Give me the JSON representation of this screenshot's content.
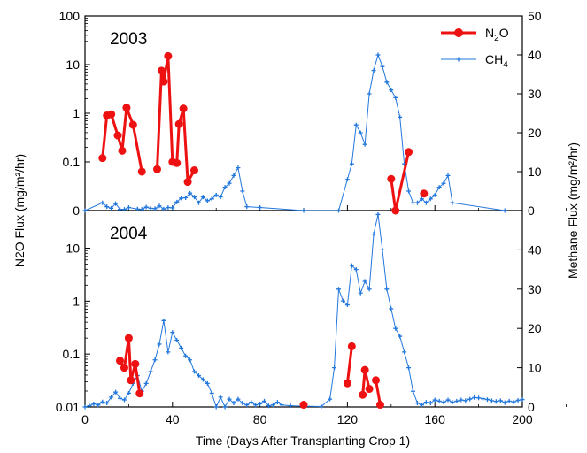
{
  "chart_data": {
    "type": "line",
    "xlabel": "Time (Days After Transplanting Crop 1)",
    "left_ylabel": "N2O Flux (mg/m²/hr)",
    "right_ylabel": "Methane Flux (mg/m²/hr)",
    "xlim": [
      0,
      200
    ],
    "x_ticks": [
      0,
      40,
      80,
      120,
      160,
      200
    ],
    "legend": {
      "placement": "top-right",
      "n2o": {
        "base": "N",
        "sub": "2",
        "tail": "O"
      },
      "ch4": {
        "base": "CH",
        "sub": "4",
        "tail": ""
      }
    },
    "colors": {
      "n2o": "#ee1111",
      "ch4": "#2277dd"
    },
    "panels": [
      {
        "label": "2003",
        "left_axis": {
          "scale": "log-with-zero",
          "ticks": [
            0,
            0.1,
            1,
            10,
            100
          ],
          "tick_labels": [
            "0",
            "0.1",
            "1",
            "10",
            "100"
          ]
        },
        "right_axis": {
          "ylim": [
            0,
            50
          ],
          "ticks": [
            0,
            10,
            20,
            30,
            40,
            50
          ],
          "tick_labels": [
            "0",
            "10",
            "20",
            "30",
            "40",
            "50"
          ]
        },
        "n2o_segments": [
          [
            [
              8,
              0.12
            ],
            [
              10,
              0.9
            ],
            [
              12,
              0.95
            ],
            [
              15,
              0.35
            ],
            [
              17,
              0.17
            ],
            [
              19,
              1.3
            ],
            [
              22,
              0.58
            ],
            [
              26,
              0.04
            ]
          ],
          [
            [
              33,
              0.05
            ],
            [
              35,
              7.5
            ],
            [
              36,
              4.5
            ],
            [
              38,
              15
            ],
            [
              40,
              0.1
            ],
            [
              42,
              0.09
            ],
            [
              43,
              0.6
            ],
            [
              45,
              1.25
            ],
            [
              47,
              0.015
            ],
            [
              50,
              0.045
            ]
          ],
          [
            [
              140,
              0.02
            ],
            [
              142,
              0
            ],
            [
              148,
              0.16
            ]
          ],
          [
            [
              155,
              0.005
            ]
          ]
        ],
        "ch4": [
          [
            0,
            0
          ],
          [
            8,
            2
          ],
          [
            10,
            1
          ],
          [
            12,
            0.6
          ],
          [
            14,
            1.8
          ],
          [
            16,
            0.3
          ],
          [
            18,
            0.3
          ],
          [
            20,
            0.8
          ],
          [
            24,
            0.4
          ],
          [
            26,
            0.3
          ],
          [
            28,
            0.9
          ],
          [
            30,
            0.6
          ],
          [
            32,
            0.5
          ],
          [
            34,
            1.2
          ],
          [
            36,
            0.4
          ],
          [
            38,
            0.8
          ],
          [
            40,
            0.7
          ],
          [
            42,
            2.2
          ],
          [
            44,
            3.2
          ],
          [
            46,
            3.3
          ],
          [
            48,
            4.5
          ],
          [
            50,
            3.5
          ],
          [
            52,
            2
          ],
          [
            54,
            3.5
          ],
          [
            56,
            2.5
          ],
          [
            58,
            3
          ],
          [
            60,
            4
          ],
          [
            62,
            3.5
          ],
          [
            64,
            6
          ],
          [
            66,
            7
          ],
          [
            68,
            9
          ],
          [
            70,
            11
          ],
          [
            72,
            5
          ],
          [
            74,
            1
          ],
          [
            80,
            0.8
          ],
          [
            100,
            0
          ],
          [
            116,
            0
          ],
          [
            120,
            8
          ],
          [
            122,
            12
          ],
          [
            124,
            22
          ],
          [
            126,
            20
          ],
          [
            128,
            17
          ],
          [
            130,
            30
          ],
          [
            132,
            36
          ],
          [
            134,
            40
          ],
          [
            136,
            37
          ],
          [
            138,
            33
          ],
          [
            140,
            31
          ],
          [
            142,
            29
          ],
          [
            144,
            24
          ],
          [
            146,
            12
          ],
          [
            148,
            5
          ],
          [
            150,
            2
          ],
          [
            152,
            2
          ],
          [
            154,
            3
          ],
          [
            156,
            2
          ],
          [
            158,
            3
          ],
          [
            160,
            4
          ],
          [
            162,
            6
          ],
          [
            164,
            7
          ],
          [
            166,
            9
          ],
          [
            168,
            2
          ],
          [
            192,
            0
          ]
        ]
      },
      {
        "label": "2004",
        "left_axis": {
          "scale": "log",
          "ticks": [
            0.01,
            0.1,
            1,
            10
          ],
          "tick_labels": [
            "0.01",
            "0.1",
            "1",
            "10"
          ]
        },
        "right_axis": {
          "ylim": [
            0,
            50
          ],
          "ticks": [
            0,
            10,
            20,
            30,
            40
          ],
          "tick_labels": [
            "0",
            "10",
            "20",
            "30",
            "40"
          ]
        },
        "n2o_segments": [
          [
            [
              16,
              0.075
            ],
            [
              18,
              0.055
            ],
            [
              20,
              0.2
            ],
            [
              21,
              0.032
            ],
            [
              23,
              0.065
            ],
            [
              25,
              0.018
            ]
          ],
          [
            [
              100,
              0.011
            ]
          ],
          [
            [
              120,
              0.028
            ],
            [
              122,
              0.14
            ]
          ],
          [
            [
              127,
              0.017
            ],
            [
              128,
              0.05
            ],
            [
              130,
              0.022
            ]
          ],
          [
            [
              133,
              0.032
            ],
            [
              135,
              0.011
            ]
          ]
        ],
        "ch4": [
          [
            0,
            0
          ],
          [
            2,
            0.3
          ],
          [
            4,
            0.8
          ],
          [
            6,
            0.5
          ],
          [
            8,
            1.3
          ],
          [
            10,
            1
          ],
          [
            12,
            2.5
          ],
          [
            14,
            3.8
          ],
          [
            16,
            2.2
          ],
          [
            18,
            1.8
          ],
          [
            20,
            3.5
          ],
          [
            22,
            6
          ],
          [
            24,
            8
          ],
          [
            26,
            4
          ],
          [
            28,
            6
          ],
          [
            30,
            9
          ],
          [
            32,
            12
          ],
          [
            34,
            16
          ],
          [
            36,
            22
          ],
          [
            38,
            14
          ],
          [
            40,
            19
          ],
          [
            42,
            17
          ],
          [
            44,
            15
          ],
          [
            46,
            13
          ],
          [
            48,
            12
          ],
          [
            50,
            9
          ],
          [
            52,
            8
          ],
          [
            54,
            7
          ],
          [
            56,
            6
          ],
          [
            58,
            3.5
          ],
          [
            60,
            0
          ],
          [
            62,
            2.5
          ],
          [
            64,
            0
          ],
          [
            66,
            2
          ],
          [
            68,
            1
          ],
          [
            70,
            2
          ],
          [
            72,
            1
          ],
          [
            74,
            0.5
          ],
          [
            76,
            1.2
          ],
          [
            78,
            0.5
          ],
          [
            80,
            0.8
          ],
          [
            82,
            1.5
          ],
          [
            84,
            0.3
          ],
          [
            86,
            0.5
          ],
          [
            88,
            1.2
          ],
          [
            90,
            0.5
          ],
          [
            94,
            0.3
          ],
          [
            100,
            0.2
          ],
          [
            108,
            0.1
          ],
          [
            112,
            2
          ],
          [
            114,
            10
          ],
          [
            116,
            30
          ],
          [
            118,
            27
          ],
          [
            120,
            26
          ],
          [
            122,
            36
          ],
          [
            124,
            35
          ],
          [
            126,
            29
          ],
          [
            128,
            32
          ],
          [
            130,
            30
          ],
          [
            132,
            44
          ],
          [
            134,
            49
          ],
          [
            136,
            40
          ],
          [
            138,
            30
          ],
          [
            140,
            25
          ],
          [
            142,
            20
          ],
          [
            144,
            18
          ],
          [
            146,
            14
          ],
          [
            148,
            10
          ],
          [
            150,
            4
          ],
          [
            152,
            1
          ],
          [
            154,
            0.5
          ],
          [
            156,
            1.2
          ],
          [
            158,
            1
          ],
          [
            160,
            1.8
          ],
          [
            162,
            1.5
          ],
          [
            164,
            1.2
          ],
          [
            166,
            1.8
          ],
          [
            168,
            1.2
          ],
          [
            170,
            1.5
          ],
          [
            172,
            1.8
          ],
          [
            174,
            1.6
          ],
          [
            176,
            2
          ],
          [
            178,
            2.4
          ],
          [
            180,
            2.3
          ],
          [
            182,
            2.1
          ],
          [
            184,
            1.9
          ],
          [
            186,
            1.6
          ],
          [
            188,
            1.4
          ],
          [
            190,
            1.6
          ],
          [
            192,
            1.1
          ],
          [
            194,
            1.5
          ],
          [
            196,
            1.3
          ],
          [
            198,
            1.7
          ],
          [
            200,
            1.9
          ]
        ]
      }
    ]
  }
}
